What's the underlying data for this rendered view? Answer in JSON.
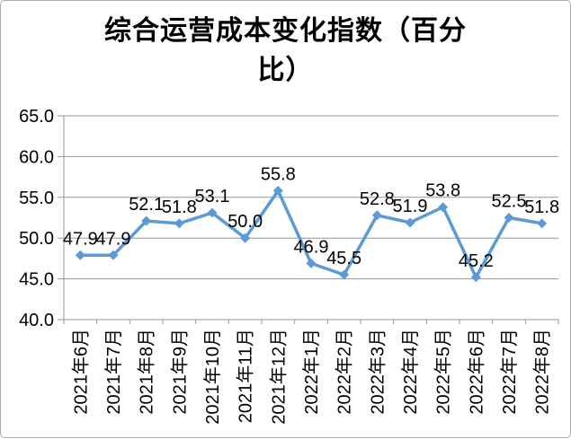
{
  "page": {
    "background_color": "#ffffff",
    "frame_border_color": "#ababab"
  },
  "header": {
    "title_line1": "综合运营成本变化指数（百分",
    "title_line2": "比）"
  },
  "chart_data": {
    "type": "line",
    "title": "综合运营成本变化指数（百分比）",
    "categories": [
      "2021年6月",
      "2021年7月",
      "2021年8月",
      "2021年9月",
      "2021年10月",
      "2021年11月",
      "2021年12月",
      "2022年1月",
      "2022年2月",
      "2022年3月",
      "2022年4月",
      "2022年5月",
      "2022年6月",
      "2022年7月",
      "2022年8月"
    ],
    "values": [
      47.9,
      47.9,
      52.1,
      51.8,
      53.1,
      50.0,
      55.8,
      46.9,
      45.5,
      52.8,
      51.9,
      53.8,
      45.2,
      52.5,
      51.8
    ],
    "point_labels": [
      "47.9",
      "47.9",
      "52.1",
      "51.8",
      "53.1",
      "50.0",
      "55.8",
      "46.9",
      "45.5",
      "52.8",
      "51.9",
      "53.8",
      "45.2",
      "52.5",
      "51.8"
    ],
    "xlabel": "",
    "ylabel": "",
    "ylim": [
      40.0,
      65.0
    ],
    "ytick_step": 5.0,
    "ytick_labels": [
      "65.0",
      "60.0",
      "55.0",
      "50.0",
      "45.0",
      "40.0"
    ],
    "grid": "horizontal",
    "legend_position": "none",
    "line_color": "#5b9bd5",
    "marker": "diamond",
    "grid_color": "#969696",
    "axis_color": "#969696",
    "label_color": "#000000"
  }
}
